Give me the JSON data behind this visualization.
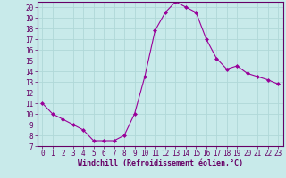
{
  "x": [
    0,
    1,
    2,
    3,
    4,
    5,
    6,
    7,
    8,
    9,
    10,
    11,
    12,
    13,
    14,
    15,
    16,
    17,
    18,
    19,
    20,
    21,
    22,
    23
  ],
  "y": [
    11,
    10,
    9.5,
    9,
    8.5,
    7.5,
    7.5,
    7.5,
    8,
    10,
    13.5,
    17.8,
    19.5,
    20.5,
    20,
    19.5,
    17,
    15.2,
    14.2,
    14.5,
    13.8,
    13.5,
    13.2,
    12.8
  ],
  "line_color": "#990099",
  "marker_color": "#990099",
  "bg_color": "#c8eaea",
  "grid_color": "#b0d8d8",
  "xlabel": "Windchill (Refroidissement éolien,°C)",
  "xlabel_color": "#660066",
  "tick_color": "#660066",
  "spine_color": "#660066",
  "ylim": [
    7,
    20.5
  ],
  "xlim": [
    -0.5,
    23.5
  ],
  "yticks": [
    7,
    8,
    9,
    10,
    11,
    12,
    13,
    14,
    15,
    16,
    17,
    18,
    19,
    20
  ],
  "xticks": [
    0,
    1,
    2,
    3,
    4,
    5,
    6,
    7,
    8,
    9,
    10,
    11,
    12,
    13,
    14,
    15,
    16,
    17,
    18,
    19,
    20,
    21,
    22,
    23
  ],
  "tick_fontsize": 5.5,
  "xlabel_fontsize": 6.0
}
